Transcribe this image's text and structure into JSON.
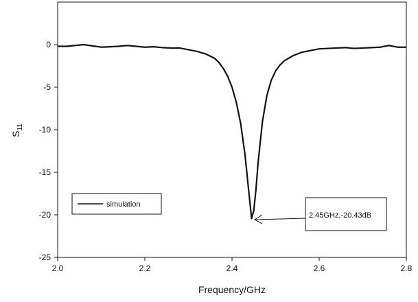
{
  "chart_data": {
    "type": "line",
    "xlabel": "Frequency/GHz",
    "ylabel_main": "S",
    "ylabel_sub": "11",
    "xlim": [
      2.0,
      2.8
    ],
    "ylim": [
      -25,
      5
    ],
    "xticks": [
      2.0,
      2.2,
      2.4,
      2.6,
      2.8
    ],
    "xtick_labels": [
      "2.0",
      "2.2",
      "2.4",
      "2.6",
      "2.8"
    ],
    "yticks": [
      0,
      -5,
      -10,
      -15,
      -20,
      -25
    ],
    "ytick_labels": [
      "0",
      "-5",
      "-10",
      "-15",
      "-20",
      "-25"
    ],
    "grid": false,
    "legend_position": "lower-left",
    "series": [
      {
        "name": "simulation",
        "color": "#111111",
        "x": [
          2.0,
          2.02,
          2.04,
          2.06,
          2.08,
          2.1,
          2.12,
          2.14,
          2.16,
          2.18,
          2.2,
          2.22,
          2.24,
          2.26,
          2.28,
          2.3,
          2.32,
          2.34,
          2.36,
          2.37,
          2.38,
          2.39,
          2.4,
          2.41,
          2.42,
          2.43,
          2.44,
          2.445,
          2.45,
          2.455,
          2.46,
          2.47,
          2.48,
          2.49,
          2.5,
          2.51,
          2.52,
          2.54,
          2.56,
          2.58,
          2.6,
          2.62,
          2.64,
          2.66,
          2.68,
          2.7,
          2.72,
          2.74,
          2.76,
          2.78,
          2.8
        ],
        "y": [
          -0.2,
          -0.2,
          -0.1,
          0.0,
          -0.15,
          -0.3,
          -0.25,
          -0.2,
          -0.1,
          -0.2,
          -0.3,
          -0.25,
          -0.35,
          -0.4,
          -0.4,
          -0.6,
          -0.8,
          -1.1,
          -1.6,
          -2.1,
          -2.8,
          -3.7,
          -5.0,
          -6.8,
          -9.3,
          -13.0,
          -18.0,
          -20.43,
          -19.5,
          -17.0,
          -13.8,
          -9.0,
          -6.0,
          -4.2,
          -3.1,
          -2.4,
          -1.9,
          -1.3,
          -0.9,
          -0.7,
          -0.5,
          -0.45,
          -0.4,
          -0.35,
          -0.45,
          -0.4,
          -0.35,
          -0.3,
          -0.1,
          -0.3,
          -0.3
        ]
      }
    ],
    "annotation": {
      "text": "2.45GHz,-20.43dB",
      "x": 2.448,
      "y": -20.43
    }
  }
}
